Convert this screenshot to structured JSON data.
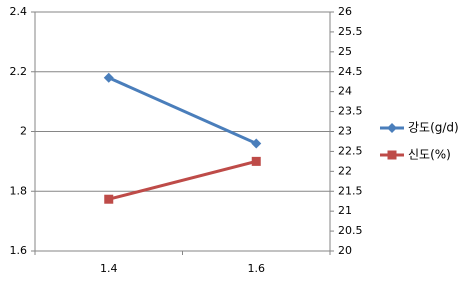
{
  "chart_data": {
    "type": "line",
    "categories": [
      "1.4",
      "1.6"
    ],
    "series": [
      {
        "name": "강도(g/d)",
        "color": "#4a7ebb",
        "marker": "diamond",
        "values": [
          2.18,
          1.96
        ]
      },
      {
        "name": "신도(%)",
        "color": "#be4b48",
        "marker": "square",
        "axis": "y2",
        "values": [
          21.3,
          22.25
        ]
      }
    ],
    "ylim": [
      1.6,
      2.4
    ],
    "yticks": [
      1.6,
      1.8,
      2,
      2.2,
      2.4
    ],
    "y2lim": [
      20,
      26
    ],
    "y2ticks": [
      20,
      20.5,
      21,
      21.5,
      22,
      22.5,
      23,
      23.5,
      24,
      24.5,
      25,
      25.5,
      26
    ],
    "grid": true,
    "legend": "right"
  }
}
